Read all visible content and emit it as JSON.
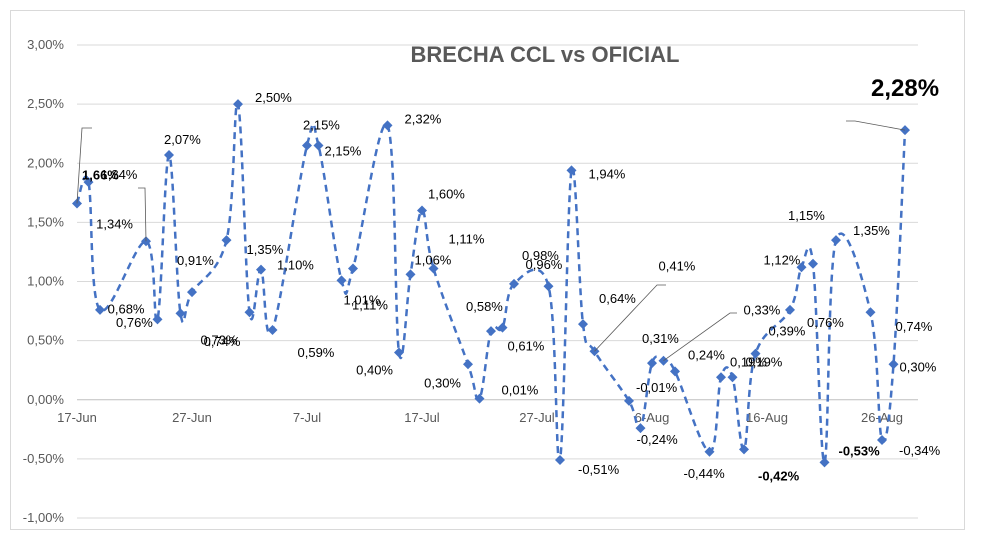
{
  "chart_data": {
    "type": "line",
    "title": "BRECHA CCL vs OFICIAL",
    "xlabel": "",
    "ylabel": "",
    "ylim": [
      -1.0,
      3.0
    ],
    "y_ticks": [
      "3,00%",
      "2,50%",
      "2,00%",
      "1,50%",
      "1,00%",
      "0,50%",
      "0,00%",
      "-0,50%",
      "-1,00%"
    ],
    "x_ticks": [
      "17-Jun",
      "27-Jun",
      "7-Jul",
      "17-Jul",
      "27-Jul",
      "6-Aug",
      "16-Aug",
      "26-Aug"
    ],
    "series": [
      {
        "name": "Brecha CCL vs Oficial",
        "color": "#4472c4",
        "points": [
          {
            "day": 0,
            "value": 1.66,
            "label": "1,66%"
          },
          {
            "day": 1,
            "value": 1.84,
            "label": "1,84%"
          },
          {
            "day": 2,
            "value": 0.76,
            "label": "0,76%"
          },
          {
            "day": 6,
            "value": 1.34,
            "label": "1,34%"
          },
          {
            "day": 7,
            "value": 0.68,
            "label": "0,68%"
          },
          {
            "day": 8,
            "value": 2.07,
            "label": "2,07%"
          },
          {
            "day": 9,
            "value": 0.73,
            "label": "0,73%"
          },
          {
            "day": 10,
            "value": 0.91,
            "label": "0,91%"
          },
          {
            "day": 13,
            "value": 1.35,
            "label": "1,35%"
          },
          {
            "day": 14,
            "value": 2.5,
            "label": "2,50%"
          },
          {
            "day": 15,
            "value": 0.74,
            "label": "0,74%"
          },
          {
            "day": 16,
            "value": 1.1,
            "label": "1,10%"
          },
          {
            "day": 17,
            "value": 0.59,
            "label": "0,59%"
          },
          {
            "day": 20,
            "value": 2.15,
            "label": "2,15%"
          },
          {
            "day": 21,
            "value": 2.15,
            "label": "2,15%"
          },
          {
            "day": 23,
            "value": 1.01,
            "label": "1,01%"
          },
          {
            "day": 24,
            "value": 1.11,
            "label": "1,11%"
          },
          {
            "day": 27,
            "value": 2.32,
            "label": "2,32%"
          },
          {
            "day": 28,
            "value": 0.4,
            "label": "0,40%"
          },
          {
            "day": 29,
            "value": 1.06,
            "label": "1,06%"
          },
          {
            "day": 30,
            "value": 1.6,
            "label": "1,60%"
          },
          {
            "day": 31,
            "value": 1.11,
            "label": "1,11%"
          },
          {
            "day": 34,
            "value": 0.3,
            "label": "0,30%"
          },
          {
            "day": 35,
            "value": 0.01,
            "label": "0,01%"
          },
          {
            "day": 36,
            "value": 0.58,
            "label": "0,58%"
          },
          {
            "day": 37,
            "value": 0.61,
            "label": "0,61%"
          },
          {
            "day": 38,
            "value": 0.98,
            "label": "0,98%"
          },
          {
            "day": 41,
            "value": 0.96,
            "label": "0,96%"
          },
          {
            "day": 42,
            "value": -0.51,
            "label": "-0,51%"
          },
          {
            "day": 43,
            "value": 1.94,
            "label": "1,94%"
          },
          {
            "day": 44,
            "value": 0.64,
            "label": "0,64%"
          },
          {
            "day": 45,
            "value": 0.41,
            "label": "0,41%"
          },
          {
            "day": 48,
            "value": -0.01,
            "label": "-0,01%"
          },
          {
            "day": 49,
            "value": -0.24,
            "label": "-0,24%"
          },
          {
            "day": 50,
            "value": 0.31,
            "label": "0,31%"
          },
          {
            "day": 51,
            "value": 0.33,
            "label": "0,33%"
          },
          {
            "day": 52,
            "value": 0.24,
            "label": "0,24%"
          },
          {
            "day": 55,
            "value": -0.44,
            "label": "-0,44%"
          },
          {
            "day": 56,
            "value": 0.19,
            "label": "0,19%"
          },
          {
            "day": 57,
            "value": 0.19,
            "label": "0,19%"
          },
          {
            "day": 58,
            "value": -0.42,
            "label": "-0,42%"
          },
          {
            "day": 59,
            "value": 0.39,
            "label": "0,39%"
          },
          {
            "day": 62,
            "value": 0.76,
            "label": "0,76%"
          },
          {
            "day": 63,
            "value": 1.12,
            "label": "1,12%"
          },
          {
            "day": 64,
            "value": 1.15,
            "label": "1,15%"
          },
          {
            "day": 65,
            "value": -0.53,
            "label": "-0,53%"
          },
          {
            "day": 66,
            "value": 1.35,
            "label": "1,35%"
          },
          {
            "day": 69,
            "value": 0.74,
            "label": "0,74%"
          },
          {
            "day": 70,
            "value": -0.34,
            "label": "-0,34%"
          },
          {
            "day": 71,
            "value": 0.3,
            "label": "0,30%"
          },
          {
            "day": 72,
            "value": 2.28,
            "label": "2,28%"
          }
        ]
      }
    ]
  }
}
